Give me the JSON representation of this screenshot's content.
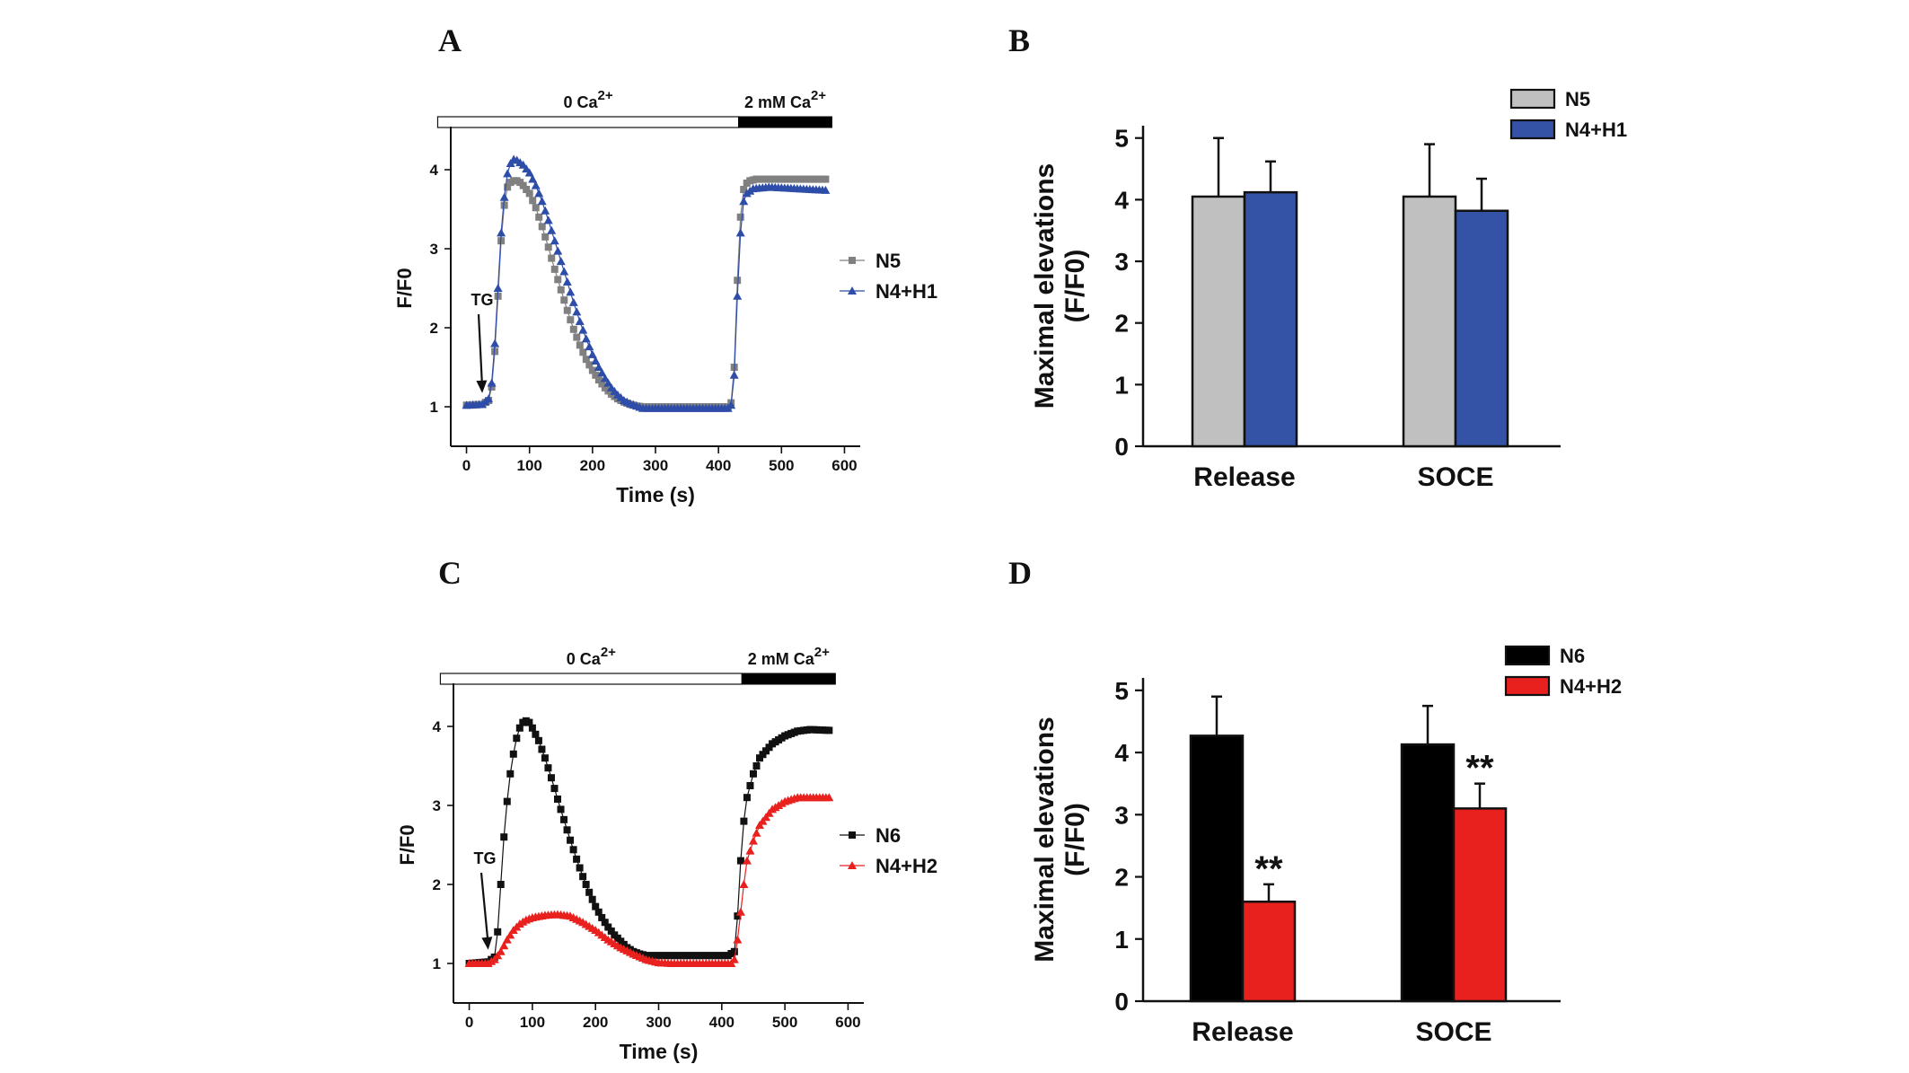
{
  "chart_data": [
    {
      "panel": "A",
      "type": "scatter",
      "xlabel": "Time (s)",
      "ylabel": "F/F0",
      "xlim": [
        -25,
        625
      ],
      "ylim": [
        0.5,
        4.5
      ],
      "xticks": [
        0,
        100,
        200,
        300,
        400,
        500,
        600
      ],
      "yticks": [
        1,
        2,
        3,
        4
      ],
      "bar_labels": {
        "zero": "0 Ca",
        "zero_sup": "2+",
        "two": "2 mM Ca",
        "two_sup": "2+"
      },
      "bar_switch_x": 432,
      "annotation": {
        "text": "TG",
        "x": 25,
        "y": 1.15
      },
      "legend_position": "right",
      "series": [
        {
          "name": "N5",
          "color": "#808080",
          "marker": "square",
          "key_points": [
            [
              0,
              1.02
            ],
            [
              25,
              1.03
            ],
            [
              35,
              1.08
            ],
            [
              40,
              1.25
            ],
            [
              45,
              1.7
            ],
            [
              50,
              2.4
            ],
            [
              55,
              3.1
            ],
            [
              60,
              3.55
            ],
            [
              65,
              3.78
            ],
            [
              70,
              3.84
            ],
            [
              75,
              3.86
            ],
            [
              80,
              3.86
            ],
            [
              85,
              3.84
            ],
            [
              90,
              3.8
            ],
            [
              95,
              3.75
            ],
            [
              100,
              3.7
            ],
            [
              110,
              3.52
            ],
            [
              120,
              3.28
            ],
            [
              130,
              3.02
            ],
            [
              140,
              2.74
            ],
            [
              150,
              2.48
            ],
            [
              160,
              2.22
            ],
            [
              170,
              1.98
            ],
            [
              180,
              1.78
            ],
            [
              190,
              1.6
            ],
            [
              200,
              1.46
            ],
            [
              210,
              1.34
            ],
            [
              220,
              1.24
            ],
            [
              230,
              1.16
            ],
            [
              240,
              1.1
            ],
            [
              250,
              1.06
            ],
            [
              260,
              1.03
            ],
            [
              270,
              1.01
            ],
            [
              280,
              1.0
            ],
            [
              415,
              1.0
            ],
            [
              420,
              1.05
            ],
            [
              425,
              1.5
            ],
            [
              430,
              2.6
            ],
            [
              435,
              3.4
            ],
            [
              440,
              3.75
            ],
            [
              445,
              3.83
            ],
            [
              450,
              3.86
            ],
            [
              460,
              3.88
            ],
            [
              570,
              3.88
            ]
          ]
        },
        {
          "name": "N4+H1",
          "color": "#2e4da8",
          "marker": "triangle",
          "key_points": [
            [
              0,
              1.02
            ],
            [
              25,
              1.03
            ],
            [
              35,
              1.1
            ],
            [
              40,
              1.3
            ],
            [
              45,
              1.8
            ],
            [
              50,
              2.5
            ],
            [
              55,
              3.2
            ],
            [
              60,
              3.65
            ],
            [
              65,
              3.95
            ],
            [
              70,
              4.08
            ],
            [
              75,
              4.13
            ],
            [
              80,
              4.12
            ],
            [
              90,
              4.06
            ],
            [
              100,
              3.96
            ],
            [
              110,
              3.8
            ],
            [
              120,
              3.6
            ],
            [
              130,
              3.36
            ],
            [
              140,
              3.1
            ],
            [
              150,
              2.84
            ],
            [
              160,
              2.58
            ],
            [
              170,
              2.32
            ],
            [
              180,
              2.08
            ],
            [
              190,
              1.86
            ],
            [
              200,
              1.66
            ],
            [
              210,
              1.5
            ],
            [
              220,
              1.36
            ],
            [
              230,
              1.24
            ],
            [
              240,
              1.15
            ],
            [
              250,
              1.08
            ],
            [
              260,
              1.04
            ],
            [
              270,
              1.01
            ],
            [
              280,
              0.98
            ],
            [
              415,
              0.98
            ],
            [
              420,
              1.02
            ],
            [
              425,
              1.4
            ],
            [
              430,
              2.4
            ],
            [
              435,
              3.2
            ],
            [
              440,
              3.6
            ],
            [
              445,
              3.7
            ],
            [
              455,
              3.76
            ],
            [
              480,
              3.78
            ],
            [
              570,
              3.74
            ]
          ]
        }
      ]
    },
    {
      "panel": "B",
      "type": "bar",
      "ylabel": "Maximal elevations",
      "ylabel_unit": "(F/F0)",
      "ylim": [
        0,
        5.2
      ],
      "yticks": [
        0,
        1,
        2,
        3,
        4,
        5
      ],
      "categories": [
        "Release",
        "SOCE"
      ],
      "legend_position": "top-right",
      "series": [
        {
          "name": "N5",
          "color": "#c0c0c0",
          "values": [
            4.05,
            4.05
          ],
          "errors": [
            0.95,
            0.85
          ]
        },
        {
          "name": "N4+H1",
          "color": "#3452a6",
          "values": [
            4.12,
            3.82
          ],
          "errors": [
            0.5,
            0.52
          ]
        }
      ],
      "significance": [
        "",
        ""
      ]
    },
    {
      "panel": "C",
      "type": "scatter",
      "xlabel": "Time (s)",
      "ylabel": "F/F0",
      "xlim": [
        -25,
        625
      ],
      "ylim": [
        0.5,
        4.5
      ],
      "xticks": [
        0,
        100,
        200,
        300,
        400,
        500,
        600
      ],
      "yticks": [
        1,
        2,
        3,
        4
      ],
      "bar_labels": {
        "zero": "0  Ca",
        "zero_sup": "2+",
        "two": "2 mM  Ca",
        "two_sup": "2+"
      },
      "bar_switch_x": 432,
      "annotation": {
        "text": "TG",
        "x": 30,
        "y": 1.15
      },
      "legend_position": "right",
      "series": [
        {
          "name": "N6",
          "color": "#111111",
          "marker": "square",
          "key_points": [
            [
              0,
              1.0
            ],
            [
              30,
              1.02
            ],
            [
              40,
              1.08
            ],
            [
              45,
              1.4
            ],
            [
              50,
              2.0
            ],
            [
              55,
              2.6
            ],
            [
              60,
              3.05
            ],
            [
              65,
              3.4
            ],
            [
              70,
              3.65
            ],
            [
              75,
              3.85
            ],
            [
              80,
              3.98
            ],
            [
              85,
              4.05
            ],
            [
              90,
              4.07
            ],
            [
              95,
              4.05
            ],
            [
              100,
              3.98
            ],
            [
              110,
              3.82
            ],
            [
              120,
              3.6
            ],
            [
              130,
              3.35
            ],
            [
              140,
              3.08
            ],
            [
              150,
              2.82
            ],
            [
              160,
              2.56
            ],
            [
              170,
              2.32
            ],
            [
              180,
              2.1
            ],
            [
              190,
              1.9
            ],
            [
              200,
              1.72
            ],
            [
              210,
              1.58
            ],
            [
              220,
              1.46
            ],
            [
              230,
              1.36
            ],
            [
              240,
              1.28
            ],
            [
              250,
              1.2
            ],
            [
              260,
              1.15
            ],
            [
              270,
              1.12
            ],
            [
              280,
              1.1
            ],
            [
              410,
              1.1
            ],
            [
              420,
              1.15
            ],
            [
              425,
              1.6
            ],
            [
              430,
              2.3
            ],
            [
              435,
              2.8
            ],
            [
              440,
              3.1
            ],
            [
              450,
              3.4
            ],
            [
              460,
              3.6
            ],
            [
              480,
              3.78
            ],
            [
              500,
              3.88
            ],
            [
              520,
              3.94
            ],
            [
              540,
              3.96
            ],
            [
              570,
              3.95
            ]
          ]
        },
        {
          "name": "N4+H2",
          "color": "#e8211e",
          "marker": "triangle",
          "key_points": [
            [
              0,
              1.0
            ],
            [
              30,
              1.0
            ],
            [
              40,
              1.05
            ],
            [
              50,
              1.15
            ],
            [
              60,
              1.3
            ],
            [
              70,
              1.42
            ],
            [
              80,
              1.5
            ],
            [
              90,
              1.55
            ],
            [
              100,
              1.58
            ],
            [
              120,
              1.61
            ],
            [
              140,
              1.62
            ],
            [
              160,
              1.6
            ],
            [
              180,
              1.52
            ],
            [
              200,
              1.42
            ],
            [
              220,
              1.3
            ],
            [
              240,
              1.2
            ],
            [
              260,
              1.12
            ],
            [
              280,
              1.05
            ],
            [
              300,
              1.01
            ],
            [
              320,
              1.0
            ],
            [
              415,
              1.0
            ],
            [
              420,
              1.05
            ],
            [
              425,
              1.3
            ],
            [
              430,
              1.65
            ],
            [
              435,
              2.0
            ],
            [
              440,
              2.3
            ],
            [
              450,
              2.55
            ],
            [
              460,
              2.75
            ],
            [
              480,
              2.95
            ],
            [
              500,
              3.05
            ],
            [
              520,
              3.1
            ],
            [
              570,
              3.1
            ]
          ]
        }
      ]
    },
    {
      "panel": "D",
      "type": "bar",
      "ylabel": "Maximal elevations",
      "ylabel_unit": "(F/F0)",
      "ylim": [
        0,
        5.2
      ],
      "yticks": [
        0,
        1,
        2,
        3,
        4,
        5
      ],
      "categories": [
        "Release",
        "SOCE"
      ],
      "legend_position": "top-right",
      "series": [
        {
          "name": "N6",
          "color": "#000000",
          "values": [
            4.27,
            4.13
          ],
          "errors": [
            0.63,
            0.62
          ]
        },
        {
          "name": "N4+H2",
          "color": "#e8211e",
          "values": [
            1.6,
            3.1
          ],
          "errors": [
            0.28,
            0.4
          ]
        }
      ],
      "significance": [
        "**",
        "**"
      ]
    }
  ]
}
